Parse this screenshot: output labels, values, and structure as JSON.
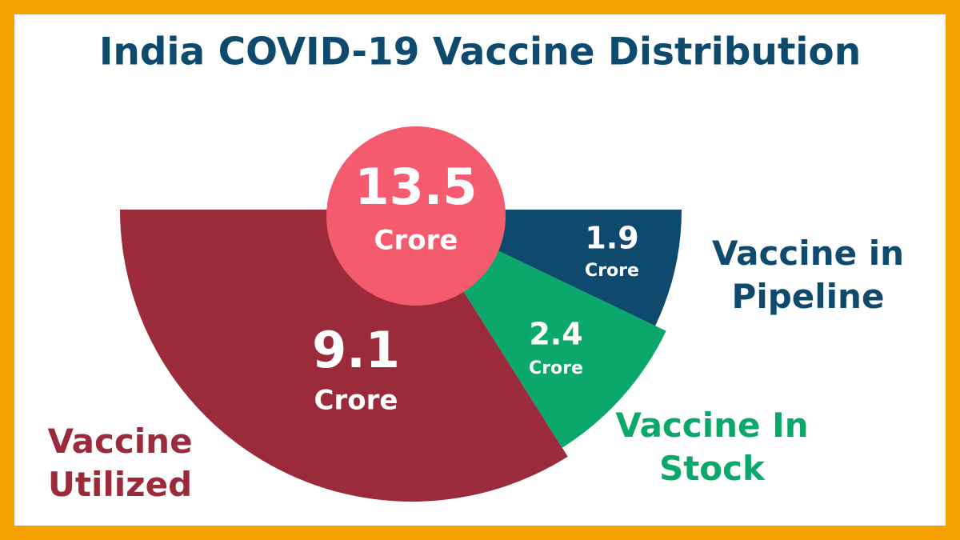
{
  "chart_data": {
    "type": "pie",
    "title": "India COVID-19 Vaccine Distribution",
    "total": 13.5,
    "unit": "Crore",
    "categories": [
      "Vaccine Utilized",
      "Vaccine In Stock",
      "Vaccine in Pipeline"
    ],
    "values": [
      9.1,
      2.4,
      1.9
    ],
    "colors": [
      "#9b2a3a",
      "#0aa86a",
      "#0d4a6e"
    ],
    "title_color": "#0d4a6e",
    "total_color": "#f45b6e"
  }
}
